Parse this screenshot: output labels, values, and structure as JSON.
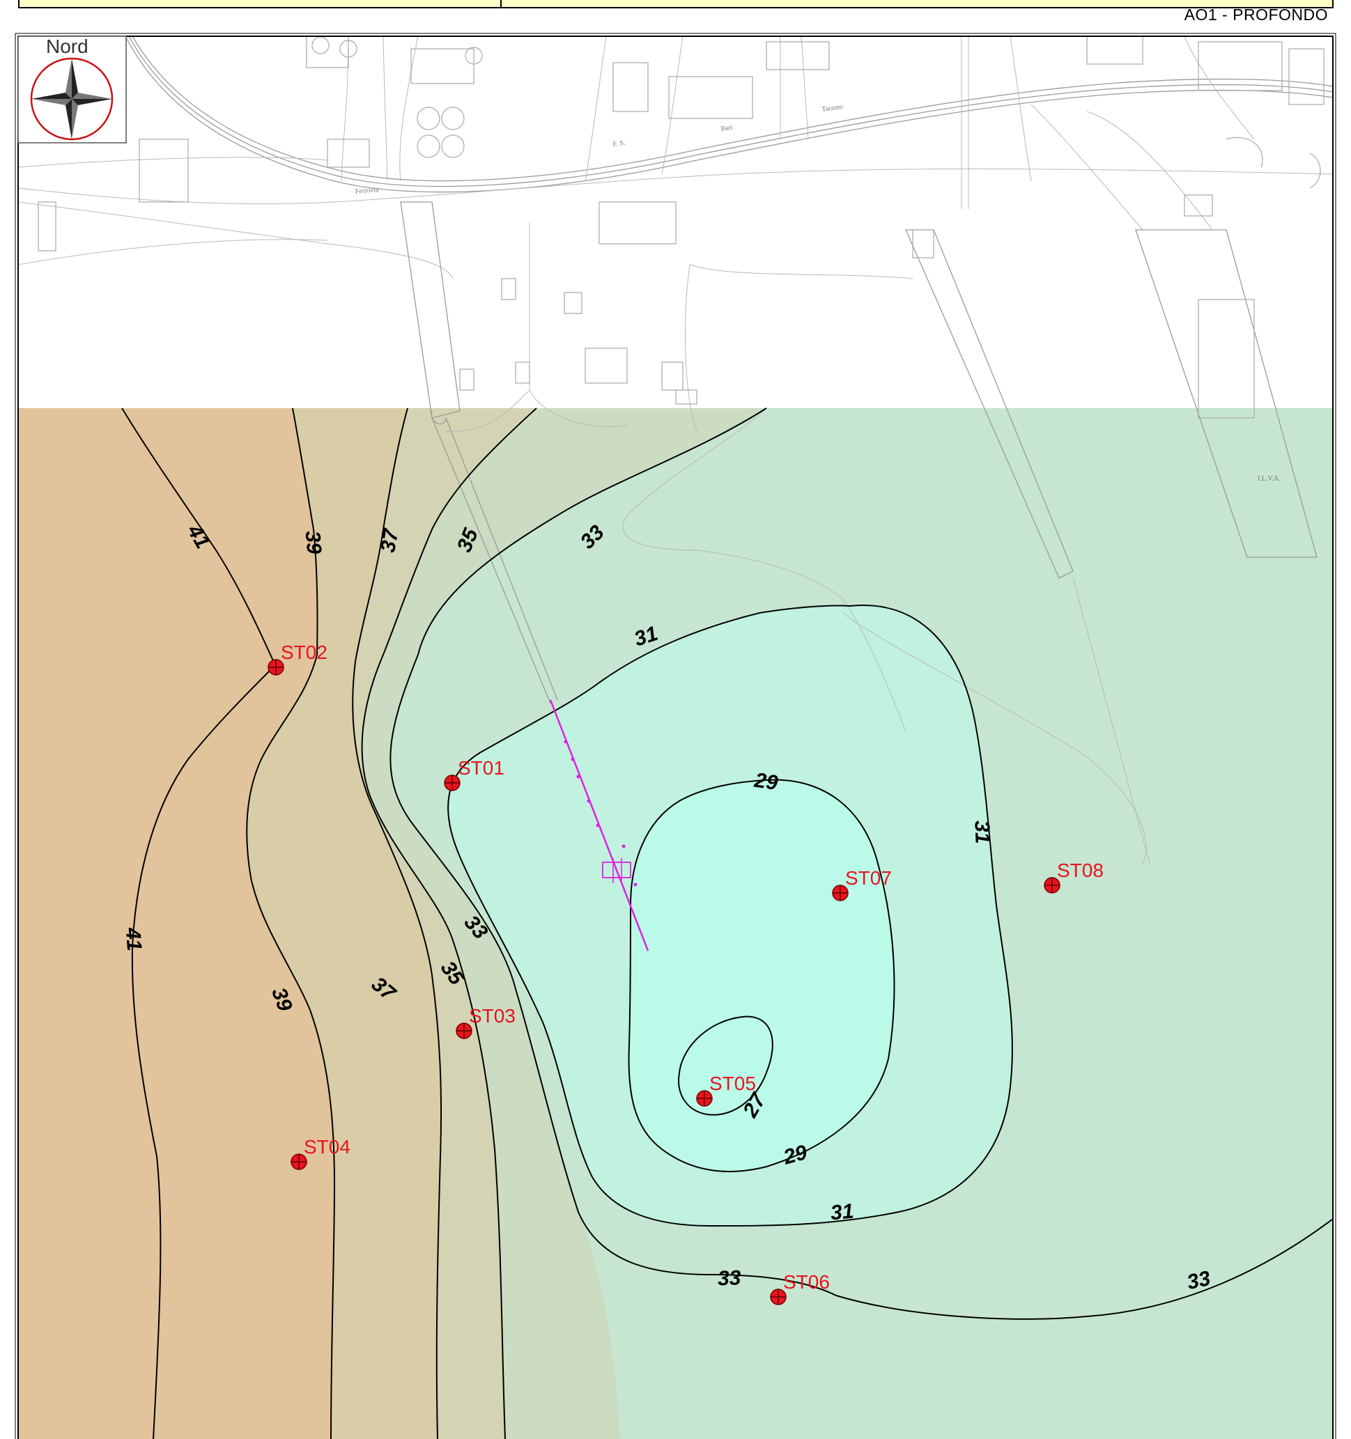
{
  "drawing_title": "AO1 - PROFONDO",
  "compass": {
    "label": "Nord",
    "icon": "compass-rose-icon"
  },
  "colors": {
    "frame": "#000000",
    "header_fill": "#ffffc8",
    "band_41": "#e1c39c",
    "band_39": "#d9cda7",
    "band_37": "#d4d3b3",
    "band_35": "#cbdcc2",
    "band_33": "#c6e6d1",
    "band_31": "#c0f2df",
    "band_29": "#bbfae8",
    "band_27": "#bbfae8",
    "station_marker": "#e8141e",
    "station_label": "#e8141e",
    "pipeline": "#e020e0",
    "contour_line": "#000000",
    "basemap_line": "#9a9a9a"
  },
  "basemap_labels": [
    "Ferrovia",
    "Bari",
    "Taranto",
    "F. S.",
    "I.L.V.A."
  ],
  "contour_levels": [
    27,
    29,
    31,
    33,
    35,
    37,
    39,
    41
  ],
  "contour_labels": [
    "41",
    "39",
    "37",
    "35",
    "33",
    "31",
    "29",
    "27",
    "31",
    "33",
    "35",
    "37",
    "39",
    "41",
    "29",
    "31",
    "33",
    "33"
  ],
  "stations": [
    {
      "id": "ST01"
    },
    {
      "id": "ST02"
    },
    {
      "id": "ST03"
    },
    {
      "id": "ST04"
    },
    {
      "id": "ST05"
    },
    {
      "id": "ST06"
    },
    {
      "id": "ST07"
    },
    {
      "id": "ST08"
    }
  ]
}
